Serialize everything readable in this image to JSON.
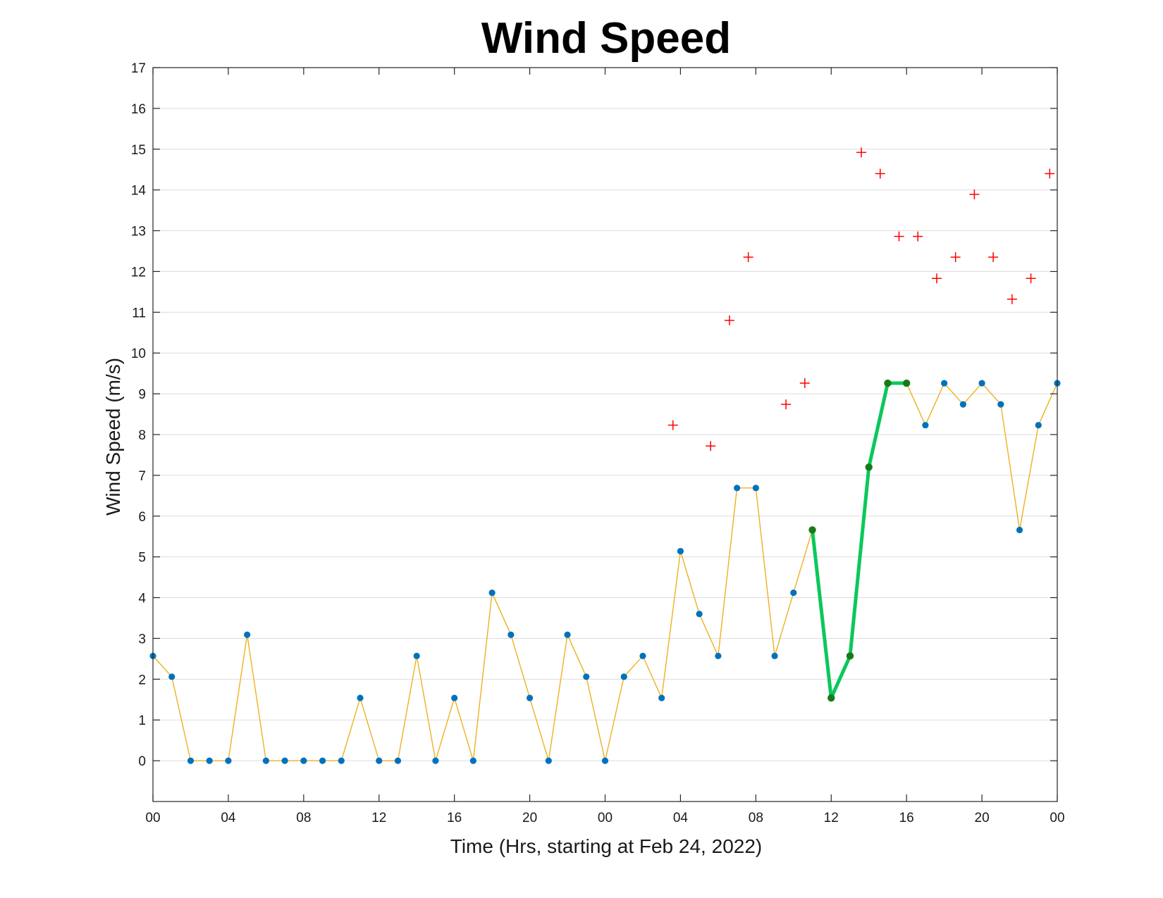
{
  "chart_data": {
    "type": "line",
    "title": "Wind Speed",
    "xlabel": "Time (Hrs, starting at Feb 24, 2022)",
    "ylabel": "Wind Speed (m/s)",
    "xlim": [
      0,
      48
    ],
    "ylim": [
      -1,
      17
    ],
    "xtick_values": [
      0,
      4,
      8,
      12,
      16,
      20,
      24,
      28,
      32,
      36,
      40,
      44,
      48
    ],
    "xtick_labels": [
      "00",
      "04",
      "08",
      "12",
      "16",
      "20",
      "00",
      "04",
      "08",
      "12",
      "16",
      "20",
      "00"
    ],
    "ytick_values": [
      0,
      1,
      2,
      3,
      4,
      5,
      6,
      7,
      8,
      9,
      10,
      11,
      12,
      13,
      14,
      15,
      16,
      17
    ],
    "grid": true,
    "colors": {
      "speed_line": "#edb120",
      "speed_marker": "#0072bd",
      "highlight_line": "#0ac85a",
      "highlight_marker": "#1a7a1a",
      "gust_marker": "#ff0000",
      "grid": "#dddddd"
    },
    "series": [
      {
        "type": "line-with-markers",
        "x": [
          0,
          1,
          2,
          3,
          4,
          5,
          6,
          7,
          8,
          9,
          10,
          11,
          12,
          13,
          14,
          15,
          16,
          17,
          18,
          19,
          20,
          21,
          22,
          23,
          24,
          25,
          26,
          27,
          28,
          29,
          30,
          31,
          32,
          33,
          34,
          35,
          36,
          37,
          38,
          39,
          40,
          41,
          42,
          43,
          44,
          45,
          46,
          47,
          48
        ],
        "values": [
          2.57,
          2.06,
          0,
          0,
          0,
          3.09,
          0,
          0,
          0,
          0,
          0,
          1.54,
          0,
          0,
          2.57,
          0,
          1.54,
          0,
          4.12,
          3.09,
          1.54,
          0,
          3.09,
          2.06,
          0,
          2.06,
          2.57,
          1.54,
          5.14,
          3.6,
          2.57,
          6.69,
          6.69,
          2.57,
          4.12,
          5.66,
          1.54,
          2.57,
          7.2,
          9.26,
          9.26,
          8.23,
          9.26,
          8.74,
          9.26,
          8.74,
          5.66,
          8.23,
          9.26
        ]
      },
      {
        "type": "highlight-line",
        "x": [
          35,
          36,
          37,
          38,
          39,
          40
        ],
        "values": [
          5.66,
          1.54,
          2.57,
          7.2,
          9.26,
          9.26
        ]
      },
      {
        "type": "gust-markers",
        "x": [
          27.6,
          29.6,
          30.6,
          31.6,
          33.6,
          34.6,
          37.6,
          38.6,
          39.6,
          40.6,
          41.6,
          42.6,
          43.6,
          44.6,
          45.6,
          46.6,
          47.6
        ],
        "values": [
          8.23,
          7.72,
          10.8,
          12.35,
          8.74,
          9.26,
          14.92,
          14.4,
          12.86,
          12.86,
          11.83,
          12.35,
          13.89,
          12.35,
          11.32,
          11.83,
          14.4
        ]
      }
    ]
  }
}
